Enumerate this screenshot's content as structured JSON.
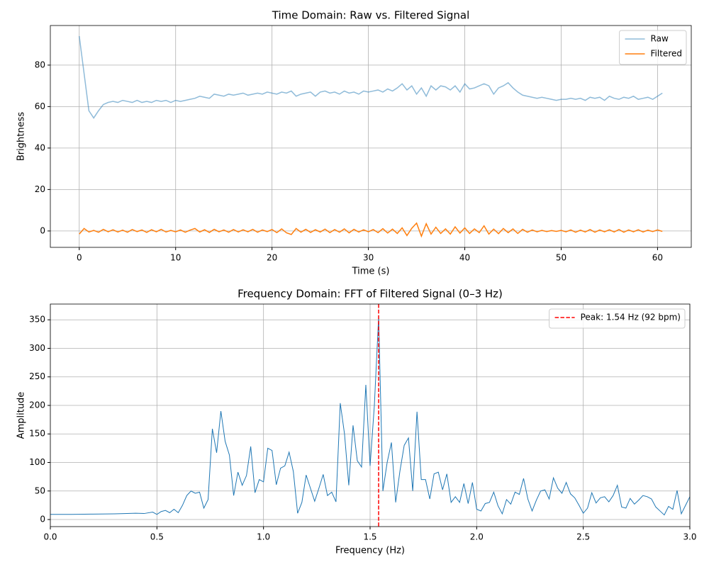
{
  "chart_data": [
    {
      "type": "line",
      "title": "Time Domain: Raw vs. Filtered Signal",
      "xlabel": "Time (s)",
      "ylabel": "Brightness",
      "xlim": [
        -3.0,
        63.5
      ],
      "ylim": [
        -7.9,
        99.1
      ],
      "xticks": [
        0,
        10,
        20,
        30,
        40,
        50,
        60
      ],
      "yticks": [
        0,
        20,
        40,
        60,
        80
      ],
      "grid": true,
      "legend": "upper right",
      "series": [
        {
          "name": "Raw",
          "color": "#1f77b4",
          "alpha": 0.5,
          "x": [
            0,
            0.5,
            1,
            1.5,
            2,
            2.5,
            3,
            3.5,
            4,
            4.5,
            5,
            5.5,
            6,
            6.5,
            7,
            7.5,
            8,
            8.5,
            9,
            9.5,
            10,
            10.5,
            11,
            11.5,
            12,
            12.5,
            13,
            13.5,
            14,
            14.5,
            15,
            15.5,
            16,
            16.5,
            17,
            17.5,
            18,
            18.5,
            19,
            19.5,
            20,
            20.5,
            21,
            21.5,
            22,
            22.5,
            23,
            23.5,
            24,
            24.5,
            25,
            25.5,
            26,
            26.5,
            27,
            27.5,
            28,
            28.5,
            29,
            29.5,
            30,
            30.5,
            31,
            31.5,
            32,
            32.5,
            33,
            33.5,
            34,
            34.5,
            35,
            35.5,
            36,
            36.5,
            37,
            37.5,
            38,
            38.5,
            39,
            39.5,
            40,
            40.5,
            41,
            41.5,
            42,
            42.5,
            43,
            43.5,
            44,
            44.5,
            45,
            45.5,
            46,
            46.5,
            47,
            47.5,
            48,
            48.5,
            49,
            49.5,
            50,
            50.5,
            51,
            51.5,
            52,
            52.5,
            53,
            53.5,
            54,
            54.5,
            55,
            55.5,
            56,
            56.5,
            57,
            57.5,
            58,
            58.5,
            59,
            59.5,
            60,
            60.5
          ],
          "values": [
            94,
            76,
            58,
            54.5,
            58,
            61,
            62,
            62.5,
            62,
            63,
            62.5,
            62,
            63,
            62,
            62.5,
            62,
            63,
            62.5,
            63,
            62,
            63,
            62.5,
            63,
            63.5,
            64,
            65,
            64.5,
            64,
            66,
            65.5,
            65,
            66,
            65.5,
            66,
            66.5,
            65.5,
            66,
            66.5,
            66,
            67,
            66.5,
            66,
            67,
            66.5,
            67.5,
            65,
            66,
            66.5,
            67,
            65,
            67,
            67.5,
            66.5,
            67,
            66,
            67.5,
            66.5,
            67,
            66,
            67.5,
            67,
            67.5,
            68,
            67,
            68.5,
            67.5,
            69,
            71,
            68,
            70,
            66,
            69,
            65,
            70,
            68,
            70,
            69.5,
            68,
            70,
            67,
            71,
            68.5,
            69,
            70,
            71,
            70,
            66,
            69,
            70,
            71.5,
            69,
            67,
            65.5,
            65,
            64.5,
            64,
            64.5,
            64,
            63.5,
            63,
            63.5,
            63.5,
            64,
            63.5,
            64,
            63,
            64.5,
            64,
            64.5,
            63,
            65,
            64,
            63.5,
            64.5,
            64,
            65,
            63.5,
            64,
            64.5,
            63.5,
            65,
            66.5
          ]
        },
        {
          "name": "Filtered",
          "color": "#ff7f0e",
          "alpha": 1,
          "x": [
            0,
            0.5,
            1,
            1.5,
            2,
            2.5,
            3,
            3.5,
            4,
            4.5,
            5,
            5.5,
            6,
            6.5,
            7,
            7.5,
            8,
            8.5,
            9,
            9.5,
            10,
            10.5,
            11,
            11.5,
            12,
            12.5,
            13,
            13.5,
            14,
            14.5,
            15,
            15.5,
            16,
            16.5,
            17,
            17.5,
            18,
            18.5,
            19,
            19.5,
            20,
            20.5,
            21,
            21.5,
            22,
            22.5,
            23,
            23.5,
            24,
            24.5,
            25,
            25.5,
            26,
            26.5,
            27,
            27.5,
            28,
            28.5,
            29,
            29.5,
            30,
            30.5,
            31,
            31.5,
            32,
            32.5,
            33,
            33.5,
            34,
            34.5,
            35,
            35.5,
            36,
            36.5,
            37,
            37.5,
            38,
            38.5,
            39,
            39.5,
            40,
            40.5,
            41,
            41.5,
            42,
            42.5,
            43,
            43.5,
            44,
            44.5,
            45,
            45.5,
            46,
            46.5,
            47,
            47.5,
            48,
            48.5,
            49,
            49.5,
            50,
            50.5,
            51,
            51.5,
            52,
            52.5,
            53,
            53.5,
            54,
            54.5,
            55,
            55.5,
            56,
            56.5,
            57,
            57.5,
            58,
            58.5,
            59,
            59.5,
            60,
            60.5
          ],
          "values": [
            -1.5,
            1.2,
            -0.5,
            0.3,
            -0.6,
            0.8,
            -0.4,
            0.6,
            -0.5,
            0.4,
            -0.6,
            0.7,
            -0.3,
            0.5,
            -0.7,
            0.6,
            -0.4,
            0.8,
            -0.5,
            0.3,
            -0.4,
            0.5,
            -0.6,
            0.4,
            1.2,
            -0.5,
            0.6,
            -0.7,
            0.8,
            -0.4,
            0.5,
            -0.6,
            0.7,
            -0.5,
            0.6,
            -0.4,
            0.8,
            -0.6,
            0.5,
            -0.3,
            0.7,
            -0.8,
            1.0,
            -0.9,
            -1.7,
            1.2,
            -0.6,
            0.8,
            -0.7,
            0.6,
            -0.5,
            0.9,
            -0.8,
            0.7,
            -0.6,
            1.0,
            -0.9,
            0.8,
            -0.5,
            0.6,
            -0.4,
            0.7,
            -0.8,
            1.1,
            -1.0,
            0.9,
            -1.2,
            1.5,
            -2.2,
            1.3,
            3.8,
            -2.5,
            3.5,
            -1.5,
            1.8,
            -1.2,
            1.0,
            -1.5,
            2.0,
            -1.0,
            1.5,
            -1.2,
            1.0,
            -0.8,
            2.5,
            -1.5,
            0.9,
            -1.3,
            1.2,
            -0.8,
            1.0,
            -1.2,
            0.8,
            -0.6,
            0.5,
            -0.4,
            0.3,
            -0.3,
            0.2,
            -0.2,
            0.3,
            -0.4,
            0.5,
            -0.6,
            0.4,
            -0.5,
            0.7,
            -0.6,
            0.5,
            -0.4,
            0.6,
            -0.5,
            0.7,
            -0.6,
            0.5,
            -0.4,
            0.6,
            -0.5,
            0.4,
            -0.3,
            0.5,
            -0.2
          ]
        }
      ]
    },
    {
      "type": "line",
      "title": "Frequency Domain: FFT of Filtered Signal (0–3 Hz)",
      "xlabel": "Frequency (Hz)",
      "ylabel": "Amplitude",
      "xlim": [
        0,
        3
      ],
      "ylim": [
        -12.4,
        377.6
      ],
      "xticks": [
        {
          "value": 0,
          "label": "0.0"
        },
        0.5,
        {
          "value": 1,
          "label": "1.0"
        },
        1.5,
        {
          "value": 2,
          "label": "2.0"
        },
        2.5,
        {
          "value": 3,
          "label": "3.0"
        }
      ],
      "yticks": [
        0,
        50,
        100,
        150,
        200,
        250,
        300,
        350
      ],
      "grid": true,
      "legend": "upper right",
      "series": [
        {
          "color": "#1f77b4",
          "alpha": 1,
          "x": [
            0,
            0.1,
            0.2,
            0.3,
            0.36,
            0.4,
            0.44,
            0.48,
            0.5,
            0.52,
            0.54,
            0.56,
            0.58,
            0.6,
            0.62,
            0.64,
            0.66,
            0.68,
            0.7,
            0.72,
            0.74,
            0.76,
            0.78,
            0.8,
            0.82,
            0.84,
            0.86,
            0.88,
            0.9,
            0.92,
            0.94,
            0.96,
            0.98,
            1.0,
            1.02,
            1.04,
            1.06,
            1.08,
            1.1,
            1.12,
            1.14,
            1.16,
            1.18,
            1.2,
            1.22,
            1.24,
            1.26,
            1.28,
            1.3,
            1.32,
            1.34,
            1.36,
            1.38,
            1.4,
            1.42,
            1.44,
            1.46,
            1.48,
            1.5,
            1.52,
            1.54,
            1.56,
            1.58,
            1.6,
            1.62,
            1.64,
            1.66,
            1.68,
            1.7,
            1.72,
            1.74,
            1.76,
            1.78,
            1.8,
            1.82,
            1.84,
            1.86,
            1.88,
            1.9,
            1.92,
            1.94,
            1.96,
            1.98,
            2.0,
            2.02,
            2.04,
            2.06,
            2.08,
            2.1,
            2.12,
            2.14,
            2.16,
            2.18,
            2.2,
            2.22,
            2.24,
            2.26,
            2.28,
            2.3,
            2.32,
            2.34,
            2.36,
            2.38,
            2.4,
            2.42,
            2.44,
            2.46,
            2.48,
            2.5,
            2.52,
            2.54,
            2.56,
            2.58,
            2.6,
            2.62,
            2.64,
            2.66,
            2.68,
            2.7,
            2.72,
            2.74,
            2.76,
            2.78,
            2.8,
            2.82,
            2.84,
            2.86,
            2.88,
            2.9,
            2.92,
            2.94,
            2.96,
            2.98,
            3.0
          ],
          "values": [
            9,
            9,
            9.5,
            10,
            10.5,
            11,
            10.5,
            13,
            9,
            14,
            16,
            12,
            18,
            12,
            25,
            42,
            50,
            46,
            48,
            20,
            35,
            159,
            117,
            190,
            137,
            113,
            42,
            83,
            60,
            77,
            128,
            47,
            70,
            66,
            125,
            121,
            61,
            90,
            94,
            118,
            84,
            11,
            30,
            78,
            55,
            32,
            55,
            79,
            42,
            48,
            31,
            204,
            150,
            60,
            165,
            103,
            92,
            236,
            94,
            200,
            355,
            50,
            100,
            135,
            30,
            85,
            130,
            143,
            50,
            189,
            70,
            70,
            36,
            80,
            83,
            52,
            80,
            30,
            40,
            30,
            63,
            28,
            65,
            18,
            15,
            28,
            30,
            48,
            24,
            10,
            35,
            27,
            48,
            44,
            72,
            36,
            15,
            34,
            50,
            52,
            36,
            73,
            55,
            46,
            65,
            45,
            38,
            25,
            11,
            20,
            47,
            29,
            38,
            40,
            31,
            42,
            60,
            22,
            20,
            37,
            27,
            34,
            42,
            40,
            36,
            22,
            15,
            8,
            23,
            18,
            51,
            10,
            25,
            40
          ]
        }
      ],
      "vlines": [
        {
          "x": 1.54,
          "label": "Peak: 1.54 Hz (92 bpm)",
          "color": "#ff0000",
          "style": "dashed"
        }
      ]
    }
  ]
}
